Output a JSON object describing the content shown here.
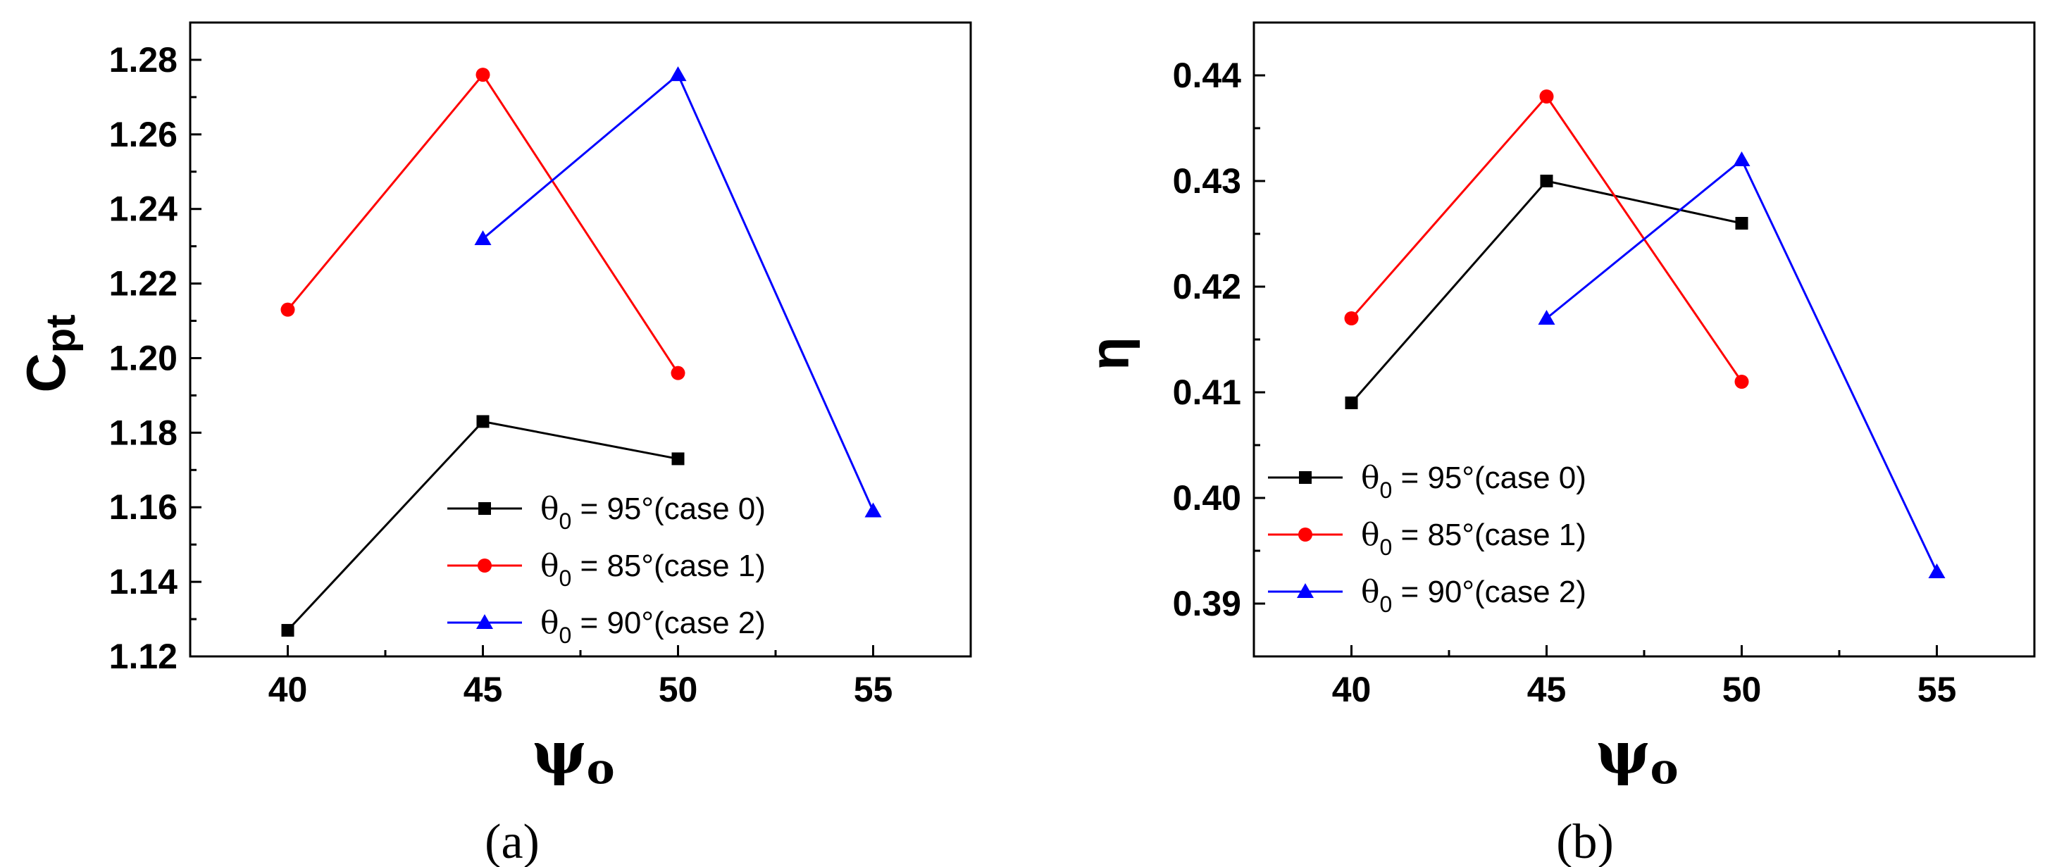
{
  "chart_data": [
    {
      "type": "line",
      "panel_label": "(a)",
      "xlabel": "ψo",
      "ylabel": "Cpt",
      "xlim": [
        37.5,
        57.5
      ],
      "ylim": [
        1.12,
        1.29
      ],
      "xticks": [
        40,
        45,
        50,
        55
      ],
      "xtick_labels": [
        "40",
        "45",
        "50",
        "55"
      ],
      "yticks": [
        1.12,
        1.14,
        1.16,
        1.18,
        1.2,
        1.22,
        1.24,
        1.26,
        1.28
      ],
      "ytick_labels": [
        "1.12",
        "1.14",
        "1.16",
        "1.18",
        "1.20",
        "1.22",
        "1.24",
        "1.26",
        "1.28"
      ],
      "legend_position": "bottom-right",
      "series": [
        {
          "name": "θ0 = 95°(case 0)",
          "label_main": "θ",
          "label_sub": "0",
          "label_rest": " = 95°(case 0)",
          "color": "#000000",
          "marker": "square",
          "x": [
            40,
            45,
            50
          ],
          "y": [
            1.127,
            1.183,
            1.173
          ]
        },
        {
          "name": "θ0 = 85°(case 1)",
          "label_main": "θ",
          "label_sub": "0",
          "label_rest": " = 85°(case 1)",
          "color": "#ff0000",
          "marker": "circle",
          "x": [
            40,
            45,
            50
          ],
          "y": [
            1.213,
            1.276,
            1.196
          ]
        },
        {
          "name": "θ0 = 90°(case 2)",
          "label_main": "θ",
          "label_sub": "0",
          "label_rest": " = 90°(case 2)",
          "color": "#0000ff",
          "marker": "triangle",
          "x": [
            45,
            50,
            55
          ],
          "y": [
            1.232,
            1.276,
            1.159
          ]
        }
      ]
    },
    {
      "type": "line",
      "panel_label": "(b)",
      "xlabel": "ψo",
      "ylabel": "η",
      "xlim": [
        37.5,
        57.5
      ],
      "ylim": [
        0.385,
        0.445
      ],
      "xticks": [
        40,
        45,
        50,
        55
      ],
      "xtick_labels": [
        "40",
        "45",
        "50",
        "55"
      ],
      "yticks": [
        0.39,
        0.4,
        0.41,
        0.42,
        0.43,
        0.44
      ],
      "ytick_labels": [
        "0.39",
        "0.40",
        "0.41",
        "0.42",
        "0.43",
        "0.44"
      ],
      "legend_position": "bottom-left",
      "series": [
        {
          "name": "θ0 = 95°(case 0)",
          "label_main": "θ",
          "label_sub": "0",
          "label_rest": " = 95°(case 0)",
          "color": "#000000",
          "marker": "square",
          "x": [
            40,
            45,
            50
          ],
          "y": [
            0.409,
            0.43,
            0.426
          ]
        },
        {
          "name": "θ0 = 85°(case 1)",
          "label_main": "θ",
          "label_sub": "0",
          "label_rest": " = 85°(case 1)",
          "color": "#ff0000",
          "marker": "circle",
          "x": [
            40,
            45,
            50
          ],
          "y": [
            0.417,
            0.438,
            0.411
          ]
        },
        {
          "name": "θ0 = 90°(case 2)",
          "label_main": "θ",
          "label_sub": "0",
          "label_rest": " = 90°(case 2)",
          "color": "#0000ff",
          "marker": "triangle",
          "x": [
            45,
            50,
            55
          ],
          "y": [
            0.417,
            0.432,
            0.393
          ]
        }
      ]
    }
  ]
}
